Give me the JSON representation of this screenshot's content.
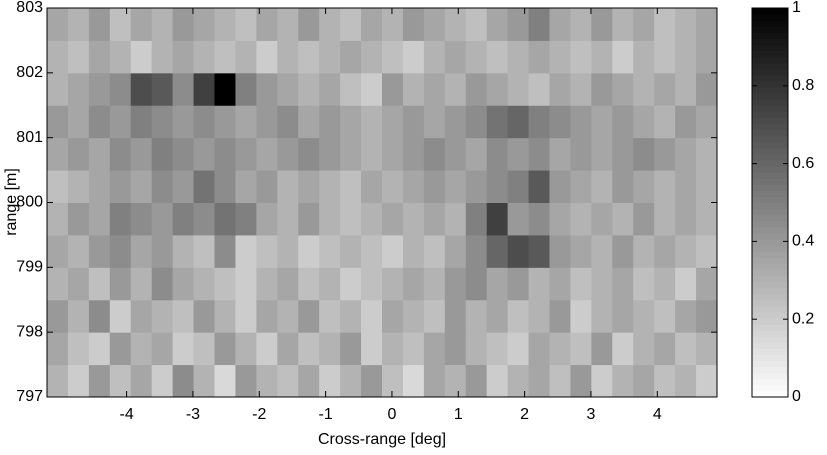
{
  "chart_data": {
    "type": "heatmap",
    "xlabel": "Cross-range [deg]",
    "ylabel": "range [m]",
    "xlim": [
      -5.2,
      4.9
    ],
    "ylim": [
      797,
      803
    ],
    "xticks": [
      -4,
      -3,
      -2,
      -1,
      0,
      1,
      2,
      3,
      4
    ],
    "yticks": [
      797,
      798,
      799,
      800,
      801,
      802,
      803
    ],
    "clim": [
      0,
      1
    ],
    "cticks": [
      0,
      0.2,
      0.4,
      0.6,
      0.8,
      1
    ],
    "colormap": "gray-reversed",
    "z": [
      [
        0.3,
        0.2,
        0.4,
        0.25,
        0.35,
        0.2,
        0.45,
        0.3,
        0.15,
        0.4,
        0.3,
        0.25,
        0.35,
        0.2,
        0.3,
        0.4,
        0.25,
        0.15,
        0.35,
        0.3,
        0.4,
        0.2,
        0.3,
        0.35,
        0.25,
        0.4,
        0.2,
        0.3,
        0.35,
        0.25,
        0.3,
        0.2
      ],
      [
        0.35,
        0.25,
        0.2,
        0.4,
        0.3,
        0.35,
        0.2,
        0.25,
        0.4,
        0.3,
        0.2,
        0.35,
        0.25,
        0.3,
        0.4,
        0.2,
        0.3,
        0.25,
        0.35,
        0.4,
        0.3,
        0.25,
        0.2,
        0.35,
        0.3,
        0.25,
        0.4,
        0.2,
        0.3,
        0.35,
        0.25,
        0.3
      ],
      [
        0.4,
        0.3,
        0.45,
        0.2,
        0.35,
        0.3,
        0.25,
        0.4,
        0.3,
        0.2,
        0.35,
        0.3,
        0.4,
        0.25,
        0.3,
        0.2,
        0.35,
        0.3,
        0.25,
        0.4,
        0.3,
        0.35,
        0.25,
        0.3,
        0.4,
        0.2,
        0.3,
        0.35,
        0.3,
        0.25,
        0.35,
        0.4
      ],
      [
        0.3,
        0.35,
        0.25,
        0.4,
        0.3,
        0.45,
        0.35,
        0.3,
        0.25,
        0.2,
        0.3,
        0.35,
        0.25,
        0.3,
        0.2,
        0.25,
        0.3,
        0.35,
        0.3,
        0.4,
        0.45,
        0.35,
        0.4,
        0.3,
        0.35,
        0.25,
        0.3,
        0.35,
        0.25,
        0.3,
        0.2,
        0.35
      ],
      [
        0.35,
        0.3,
        0.4,
        0.45,
        0.35,
        0.4,
        0.3,
        0.25,
        0.45,
        0.2,
        0.25,
        0.3,
        0.2,
        0.25,
        0.3,
        0.25,
        0.2,
        0.3,
        0.25,
        0.35,
        0.45,
        0.6,
        0.7,
        0.65,
        0.4,
        0.35,
        0.3,
        0.4,
        0.3,
        0.35,
        0.3,
        0.25
      ],
      [
        0.3,
        0.4,
        0.35,
        0.5,
        0.45,
        0.4,
        0.5,
        0.45,
        0.55,
        0.5,
        0.35,
        0.3,
        0.4,
        0.3,
        0.25,
        0.3,
        0.35,
        0.3,
        0.35,
        0.3,
        0.5,
        0.75,
        0.4,
        0.45,
        0.35,
        0.3,
        0.35,
        0.3,
        0.4,
        0.3,
        0.35,
        0.3
      ],
      [
        0.25,
        0.3,
        0.35,
        0.4,
        0.35,
        0.45,
        0.4,
        0.55,
        0.45,
        0.35,
        0.4,
        0.3,
        0.35,
        0.3,
        0.25,
        0.35,
        0.3,
        0.35,
        0.4,
        0.35,
        0.4,
        0.45,
        0.5,
        0.65,
        0.4,
        0.35,
        0.3,
        0.4,
        0.35,
        0.3,
        0.35,
        0.3
      ],
      [
        0.35,
        0.4,
        0.35,
        0.45,
        0.4,
        0.5,
        0.45,
        0.4,
        0.45,
        0.4,
        0.35,
        0.4,
        0.45,
        0.4,
        0.35,
        0.3,
        0.35,
        0.4,
        0.45,
        0.4,
        0.35,
        0.45,
        0.4,
        0.45,
        0.35,
        0.4,
        0.35,
        0.4,
        0.45,
        0.4,
        0.35,
        0.3
      ],
      [
        0.4,
        0.35,
        0.45,
        0.4,
        0.5,
        0.45,
        0.4,
        0.45,
        0.4,
        0.35,
        0.4,
        0.45,
        0.35,
        0.4,
        0.35,
        0.3,
        0.35,
        0.4,
        0.35,
        0.4,
        0.45,
        0.55,
        0.6,
        0.5,
        0.45,
        0.4,
        0.35,
        0.4,
        0.35,
        0.3,
        0.4,
        0.35
      ],
      [
        0.3,
        0.35,
        0.4,
        0.45,
        0.7,
        0.65,
        0.45,
        0.75,
        1,
        0.5,
        0.4,
        0.35,
        0.3,
        0.35,
        0.25,
        0.2,
        0.4,
        0.3,
        0.35,
        0.3,
        0.4,
        0.35,
        0.3,
        0.25,
        0.35,
        0.3,
        0.4,
        0.35,
        0.3,
        0.35,
        0.3,
        0.4
      ],
      [
        0.3,
        0.25,
        0.35,
        0.3,
        0.2,
        0.3,
        0.35,
        0.3,
        0.25,
        0.3,
        0.2,
        0.3,
        0.25,
        0.3,
        0.35,
        0.3,
        0.25,
        0.2,
        0.3,
        0.35,
        0.3,
        0.25,
        0.3,
        0.35,
        0.3,
        0.25,
        0.3,
        0.2,
        0.3,
        0.25,
        0.3,
        0.35
      ],
      [
        0.35,
        0.3,
        0.4,
        0.25,
        0.35,
        0.3,
        0.4,
        0.35,
        0.3,
        0.25,
        0.35,
        0.3,
        0.4,
        0.3,
        0.25,
        0.35,
        0.3,
        0.4,
        0.35,
        0.3,
        0.25,
        0.35,
        0.4,
        0.5,
        0.35,
        0.3,
        0.4,
        0.3,
        0.35,
        0.25,
        0.3,
        0.35
      ]
    ]
  }
}
